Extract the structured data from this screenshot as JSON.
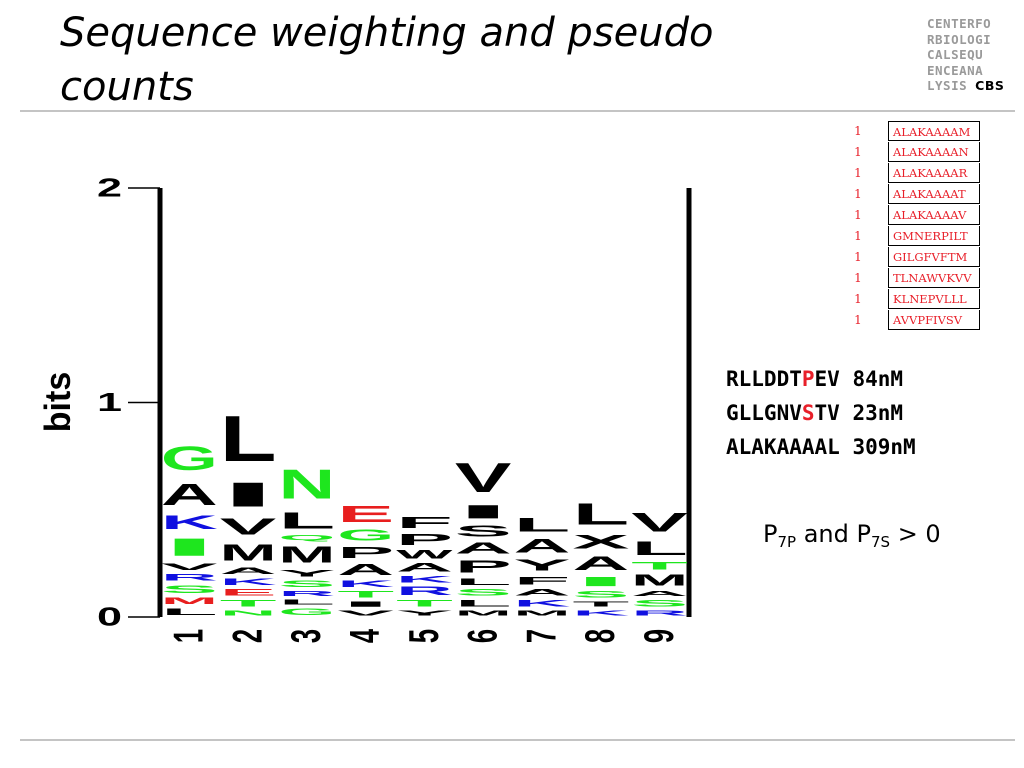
{
  "slide": {
    "title": "Sequence weighting and pseudo counts",
    "logo_lines": [
      "CENTERFO",
      "RBIOLOGI",
      "CALSEQU",
      "ENCEANA",
      "LYSIS"
    ],
    "logo_tag": "CBS"
  },
  "chart_data": {
    "type": "sequence-logo",
    "ylabel": "bits",
    "yticks": [
      "0",
      "1",
      "2"
    ],
    "ylim": [
      0,
      2
    ],
    "positions": [
      "1",
      "2",
      "3",
      "4",
      "5",
      "6",
      "7",
      "8",
      "9"
    ],
    "colors": {
      "green": "#1ee61e",
      "black": "#000000",
      "blue": "#1010e0",
      "red": "#e81e1e"
    },
    "stacks": [
      [
        {
          "aa": "L",
          "c": "black",
          "h": 0.05
        },
        {
          "aa": "M",
          "c": "red",
          "h": 0.05
        },
        {
          "aa": "S",
          "c": "green",
          "h": 0.06
        },
        {
          "aa": "R",
          "c": "blue",
          "h": 0.05
        },
        {
          "aa": "V",
          "c": "black",
          "h": 0.05
        },
        {
          "aa": "I",
          "c": "green",
          "h": 0.13
        },
        {
          "aa": "K",
          "c": "blue",
          "h": 0.1
        },
        {
          "aa": "A",
          "c": "black",
          "h": 0.16
        },
        {
          "aa": "G",
          "c": "green",
          "h": 0.18
        }
      ],
      [
        {
          "aa": "N",
          "c": "green",
          "h": 0.04
        },
        {
          "aa": "T",
          "c": "green",
          "h": 0.05
        },
        {
          "aa": "E",
          "c": "red",
          "h": 0.05
        },
        {
          "aa": "K",
          "c": "blue",
          "h": 0.05
        },
        {
          "aa": "A",
          "c": "black",
          "h": 0.05
        },
        {
          "aa": "M",
          "c": "black",
          "h": 0.12
        },
        {
          "aa": "V",
          "c": "black",
          "h": 0.12
        },
        {
          "aa": "I",
          "c": "black",
          "h": 0.18
        },
        {
          "aa": "L",
          "c": "black",
          "h": 0.34
        }
      ],
      [
        {
          "aa": "G",
          "c": "green",
          "h": 0.05
        },
        {
          "aa": "L",
          "c": "black",
          "h": 0.04
        },
        {
          "aa": "R",
          "c": "blue",
          "h": 0.04
        },
        {
          "aa": "S",
          "c": "green",
          "h": 0.05
        },
        {
          "aa": "Y",
          "c": "black",
          "h": 0.05
        },
        {
          "aa": "M",
          "c": "black",
          "h": 0.12
        },
        {
          "aa": "Q",
          "c": "green",
          "h": 0.04
        },
        {
          "aa": "L",
          "c": "black",
          "h": 0.12
        },
        {
          "aa": "N",
          "c": "green",
          "h": 0.22
        }
      ],
      [
        {
          "aa": "V",
          "c": "black",
          "h": 0.04
        },
        {
          "aa": "I",
          "c": "black",
          "h": 0.04
        },
        {
          "aa": "T",
          "c": "green",
          "h": 0.05
        },
        {
          "aa": "K",
          "c": "blue",
          "h": 0.05
        },
        {
          "aa": "A",
          "c": "black",
          "h": 0.08
        },
        {
          "aa": "P",
          "c": "black",
          "h": 0.08
        },
        {
          "aa": "G",
          "c": "green",
          "h": 0.08
        },
        {
          "aa": "E",
          "c": "red",
          "h": 0.12
        }
      ],
      [
        {
          "aa": "Y",
          "c": "black",
          "h": 0.04
        },
        {
          "aa": "T",
          "c": "green",
          "h": 0.05
        },
        {
          "aa": "R",
          "c": "blue",
          "h": 0.06
        },
        {
          "aa": "K",
          "c": "blue",
          "h": 0.05
        },
        {
          "aa": "A",
          "c": "black",
          "h": 0.06
        },
        {
          "aa": "W",
          "c": "black",
          "h": 0.06
        },
        {
          "aa": "P",
          "c": "black",
          "h": 0.08
        },
        {
          "aa": "F",
          "c": "black",
          "h": 0.08
        }
      ],
      [
        {
          "aa": "M",
          "c": "black",
          "h": 0.04
        },
        {
          "aa": "L",
          "c": "black",
          "h": 0.05
        },
        {
          "aa": "S",
          "c": "green",
          "h": 0.05
        },
        {
          "aa": "L",
          "c": "black",
          "h": 0.05
        },
        {
          "aa": "P",
          "c": "black",
          "h": 0.09
        },
        {
          "aa": "A",
          "c": "black",
          "h": 0.08
        },
        {
          "aa": "S",
          "c": "black",
          "h": 0.08
        },
        {
          "aa": "I",
          "c": "black",
          "h": 0.1
        },
        {
          "aa": "V",
          "c": "black",
          "h": 0.22
        }
      ],
      [
        {
          "aa": "M",
          "c": "black",
          "h": 0.04
        },
        {
          "aa": "K",
          "c": "blue",
          "h": 0.05
        },
        {
          "aa": "A",
          "c": "black",
          "h": 0.05
        },
        {
          "aa": "F",
          "c": "black",
          "h": 0.06
        },
        {
          "aa": "Y",
          "c": "black",
          "h": 0.08
        },
        {
          "aa": "A",
          "c": "black",
          "h": 0.1
        },
        {
          "aa": "L",
          "c": "black",
          "h": 0.1
        }
      ],
      [
        {
          "aa": "K",
          "c": "blue",
          "h": 0.04
        },
        {
          "aa": "T",
          "c": "black",
          "h": 0.04
        },
        {
          "aa": "S",
          "c": "green",
          "h": 0.05
        },
        {
          "aa": "I",
          "c": "green",
          "h": 0.07
        },
        {
          "aa": "A",
          "c": "black",
          "h": 0.1
        },
        {
          "aa": "X",
          "c": "black",
          "h": 0.1
        },
        {
          "aa": "L",
          "c": "black",
          "h": 0.16
        }
      ],
      [
        {
          "aa": "R",
          "c": "blue",
          "h": 0.04
        },
        {
          "aa": "S",
          "c": "green",
          "h": 0.05
        },
        {
          "aa": "A",
          "c": "black",
          "h": 0.04
        },
        {
          "aa": "M",
          "c": "black",
          "h": 0.08
        },
        {
          "aa": "T",
          "c": "green",
          "h": 0.06
        },
        {
          "aa": "L",
          "c": "black",
          "h": 0.1
        },
        {
          "aa": "V",
          "c": "black",
          "h": 0.14
        }
      ]
    ]
  },
  "alignment": {
    "rows": [
      {
        "weight": "1",
        "seq": "ALAKAAAAM"
      },
      {
        "weight": "1",
        "seq": "ALAKAAAAN"
      },
      {
        "weight": "1",
        "seq": "ALAKAAAAR"
      },
      {
        "weight": "1",
        "seq": "ALAKAAAAT"
      },
      {
        "weight": "1",
        "seq": "ALAKAAAAV"
      },
      {
        "weight": "1",
        "seq": "GMNERPILT"
      },
      {
        "weight": "1",
        "seq": "GILGFVFTM"
      },
      {
        "weight": "1",
        "seq": "TLNAWVKVV"
      },
      {
        "weight": "1",
        "seq": "KLNEPVLLL"
      },
      {
        "weight": "1",
        "seq": "AVVPFIVSV"
      }
    ]
  },
  "binders": [
    {
      "pre": "RLLDDT",
      "hl": "P",
      "post": "EV",
      "affinity": "84nM"
    },
    {
      "pre": "GLLGNV",
      "hl": "S",
      "post": "TV",
      "affinity": "23nM"
    },
    {
      "pre": "ALAKAAAAL",
      "hl": "",
      "post": "",
      "affinity": "309nM"
    }
  ],
  "note": {
    "p1": "P",
    "s1": "7P",
    "and": " and ",
    "p2": "P",
    "s2": "7S",
    "tail": " > 0"
  }
}
